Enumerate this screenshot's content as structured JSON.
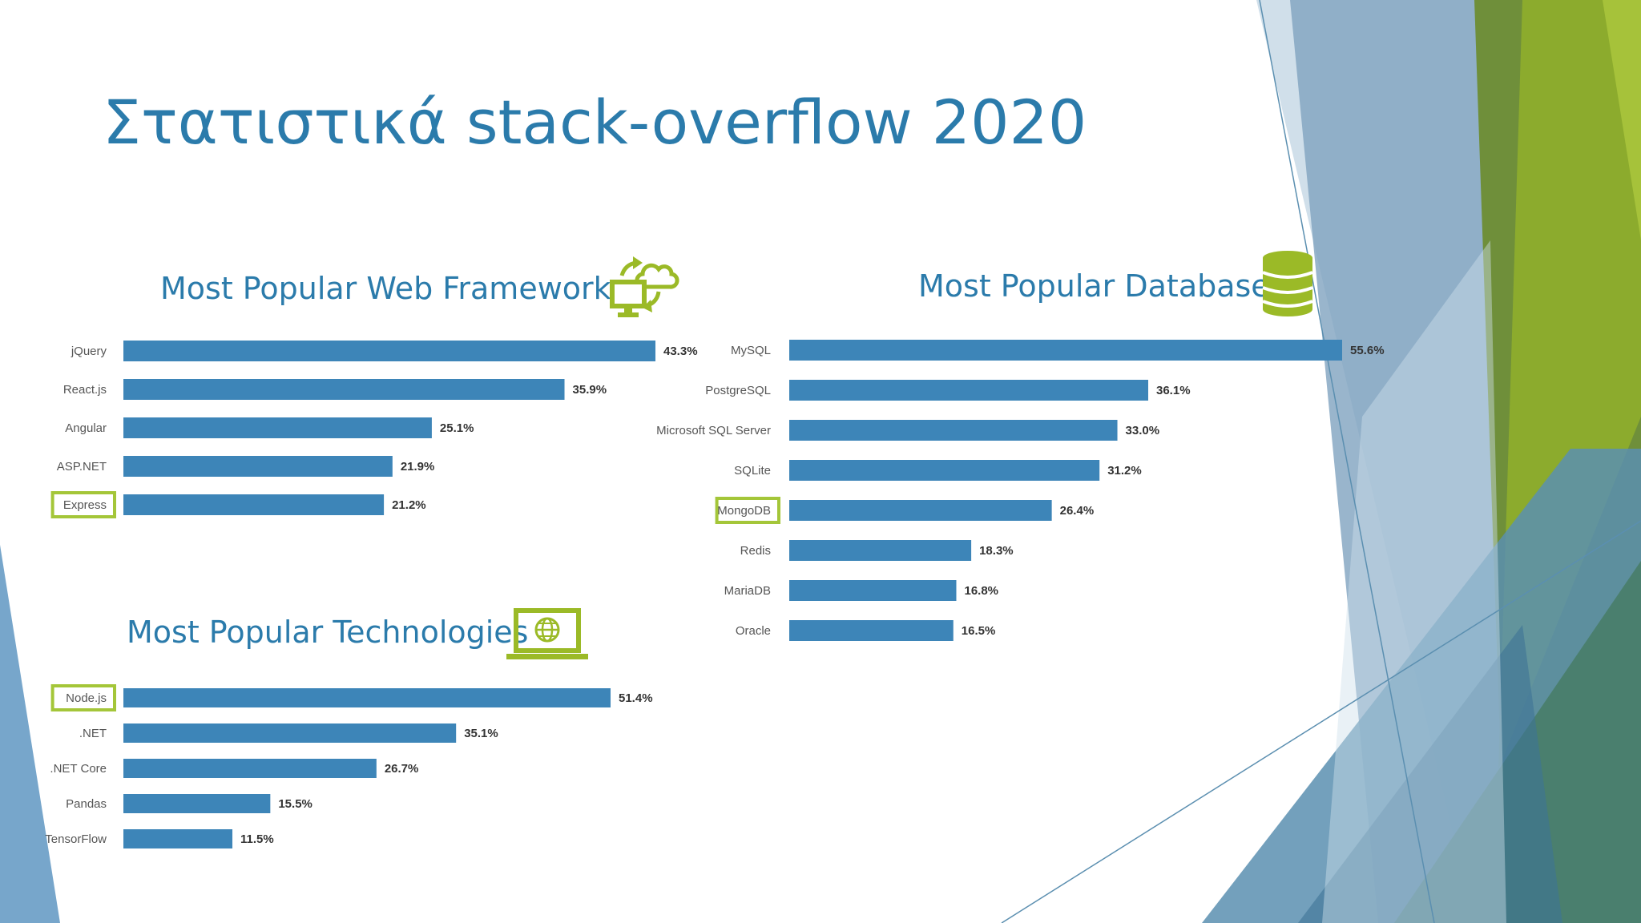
{
  "slide": {
    "title": "Στατιστικά stack-overflow 2020"
  },
  "colors": {
    "title": "#2b7bab",
    "bar": "#3d85b8",
    "highlight": "#a4c639",
    "icon": "#9bba27"
  },
  "icons": {
    "frameworks": "monitor-cloud-sync-icon",
    "databases": "database-icon",
    "technologies": "laptop-globe-icon"
  },
  "chart_data": [
    {
      "id": "frameworks",
      "type": "bar",
      "orientation": "horizontal",
      "title": "Most Popular Web Frameworks",
      "categories": [
        "jQuery",
        "React.js",
        "Angular",
        "ASP.NET",
        "Express"
      ],
      "values": [
        43.3,
        35.9,
        25.1,
        21.9,
        21.2
      ],
      "value_labels": [
        "43.3%",
        "35.9%",
        "25.1%",
        "21.9%",
        "21.2%"
      ],
      "highlighted": "Express",
      "xlim": [
        0,
        43.3
      ],
      "grid": false,
      "legend": "none"
    },
    {
      "id": "databases",
      "type": "bar",
      "orientation": "horizontal",
      "title": "Most Popular Databases",
      "categories": [
        "MySQL",
        "PostgreSQL",
        "Microsoft SQL Server",
        "SQLite",
        "MongoDB",
        "Redis",
        "MariaDB",
        "Oracle"
      ],
      "values": [
        55.6,
        36.1,
        33.0,
        31.2,
        26.4,
        18.3,
        16.8,
        16.5
      ],
      "value_labels": [
        "55.6%",
        "36.1%",
        "33.0%",
        "31.2%",
        "26.4%",
        "18.3%",
        "16.8%",
        "16.5%"
      ],
      "highlighted": "MongoDB",
      "xlim": [
        0,
        55.6
      ],
      "grid": false,
      "legend": "none"
    },
    {
      "id": "technologies",
      "type": "bar",
      "orientation": "horizontal",
      "title": "Most Popular Technologies",
      "categories": [
        "Node.js",
        ".NET",
        ".NET Core",
        "Pandas",
        "TensorFlow"
      ],
      "values": [
        51.4,
        35.1,
        26.7,
        15.5,
        11.5
      ],
      "value_labels": [
        "51.4%",
        "35.1%",
        "26.7%",
        "15.5%",
        "11.5%"
      ],
      "highlighted": "Node.js",
      "xlim": [
        0,
        51.4
      ],
      "grid": false,
      "legend": "none"
    }
  ]
}
